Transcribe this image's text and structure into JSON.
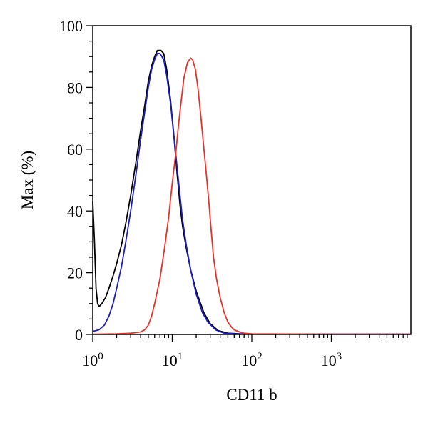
{
  "chart_data": {
    "type": "line",
    "title": "",
    "xlabel": "CD11 b",
    "ylabel": "Max (%)",
    "x_scale": "log",
    "xlim": [
      1,
      10000
    ],
    "ylim": [
      0,
      100
    ],
    "grid": false,
    "x_ticks": [
      {
        "base": "10",
        "exp": "0",
        "value": 1
      },
      {
        "base": "10",
        "exp": "1",
        "value": 10
      },
      {
        "base": "10",
        "exp": "2",
        "value": 100
      },
      {
        "base": "10",
        "exp": "3",
        "value": 1000
      }
    ],
    "y_ticks": [
      {
        "label": "0",
        "value": 0
      },
      {
        "label": "20",
        "value": 20
      },
      {
        "label": "40",
        "value": 40
      },
      {
        "label": "60",
        "value": 60
      },
      {
        "label": "80",
        "value": 80
      },
      {
        "label": "100",
        "value": 100
      }
    ],
    "series": [
      {
        "color": "#000000",
        "points": [
          [
            1.0,
            43
          ],
          [
            1.05,
            30
          ],
          [
            1.1,
            15
          ],
          [
            1.15,
            10
          ],
          [
            1.2,
            9
          ],
          [
            1.3,
            10
          ],
          [
            1.45,
            12
          ],
          [
            1.6,
            15
          ],
          [
            1.8,
            19
          ],
          [
            2.0,
            23
          ],
          [
            2.3,
            29
          ],
          [
            2.6,
            36
          ],
          [
            3.0,
            45
          ],
          [
            3.5,
            56
          ],
          [
            4.0,
            66
          ],
          [
            4.5,
            74
          ],
          [
            5.0,
            82
          ],
          [
            5.5,
            87
          ],
          [
            6.0,
            90
          ],
          [
            6.5,
            92
          ],
          [
            7.2,
            92
          ],
          [
            7.8,
            91
          ],
          [
            8.5,
            86
          ],
          [
            9.5,
            76
          ],
          [
            10.5,
            64
          ],
          [
            11.5,
            52
          ],
          [
            12.5,
            42
          ],
          [
            13.5,
            35
          ],
          [
            15,
            28
          ],
          [
            17,
            21
          ],
          [
            20,
            14
          ],
          [
            25,
            7
          ],
          [
            30,
            3.5
          ],
          [
            38,
            1.2
          ],
          [
            50,
            0.4
          ],
          [
            70,
            0.2
          ],
          [
            100,
            0.1
          ],
          [
            1000,
            0.1
          ],
          [
            10000,
            0.1
          ]
        ]
      },
      {
        "color": "#1c1cc4",
        "points": [
          [
            1.0,
            1.0
          ],
          [
            1.2,
            1.5
          ],
          [
            1.4,
            3
          ],
          [
            1.6,
            6
          ],
          [
            1.8,
            10
          ],
          [
            2.0,
            15
          ],
          [
            2.3,
            22
          ],
          [
            2.6,
            30
          ],
          [
            3.0,
            40
          ],
          [
            3.5,
            52
          ],
          [
            4.0,
            63
          ],
          [
            4.5,
            72
          ],
          [
            5.0,
            80
          ],
          [
            5.5,
            86
          ],
          [
            6.0,
            89
          ],
          [
            6.5,
            91
          ],
          [
            7.0,
            91
          ],
          [
            7.8,
            89
          ],
          [
            8.5,
            84
          ],
          [
            9.5,
            75
          ],
          [
            10.5,
            64
          ],
          [
            11.5,
            54
          ],
          [
            12.5,
            45
          ],
          [
            13.5,
            37
          ],
          [
            15,
            29
          ],
          [
            17,
            21
          ],
          [
            20,
            13
          ],
          [
            24,
            7
          ],
          [
            28,
            4
          ],
          [
            35,
            1.5
          ],
          [
            45,
            0.4
          ],
          [
            60,
            0.2
          ],
          [
            100,
            0.1
          ],
          [
            1000,
            0.1
          ],
          [
            10000,
            0.1
          ]
        ]
      },
      {
        "color": "#e8312a",
        "points": [
          [
            1.0,
            0.1
          ],
          [
            2.0,
            0.2
          ],
          [
            3.0,
            0.4
          ],
          [
            4.0,
            0.8
          ],
          [
            4.5,
            1.5
          ],
          [
            5.0,
            3
          ],
          [
            5.5,
            6
          ],
          [
            6.0,
            10
          ],
          [
            7.0,
            18
          ],
          [
            8.0,
            28
          ],
          [
            9.0,
            38
          ],
          [
            10.0,
            49
          ],
          [
            11.0,
            58
          ],
          [
            12.0,
            68
          ],
          [
            13.0,
            76
          ],
          [
            14.0,
            83
          ],
          [
            15.5,
            88
          ],
          [
            17.0,
            89.5
          ],
          [
            18.0,
            89
          ],
          [
            19.5,
            86
          ],
          [
            21.0,
            80
          ],
          [
            23.0,
            70
          ],
          [
            25.0,
            60
          ],
          [
            27.0,
            51
          ],
          [
            29.0,
            42
          ],
          [
            31.0,
            33
          ],
          [
            33.0,
            25
          ],
          [
            36.0,
            18
          ],
          [
            40.0,
            12
          ],
          [
            45.0,
            7
          ],
          [
            50.0,
            4
          ],
          [
            55.0,
            2.5
          ],
          [
            60.0,
            1.5
          ],
          [
            70.0,
            0.8
          ],
          [
            80.0,
            0.4
          ],
          [
            100,
            0.2
          ],
          [
            1000,
            0.1
          ],
          [
            10000,
            0.1
          ]
        ]
      }
    ]
  }
}
